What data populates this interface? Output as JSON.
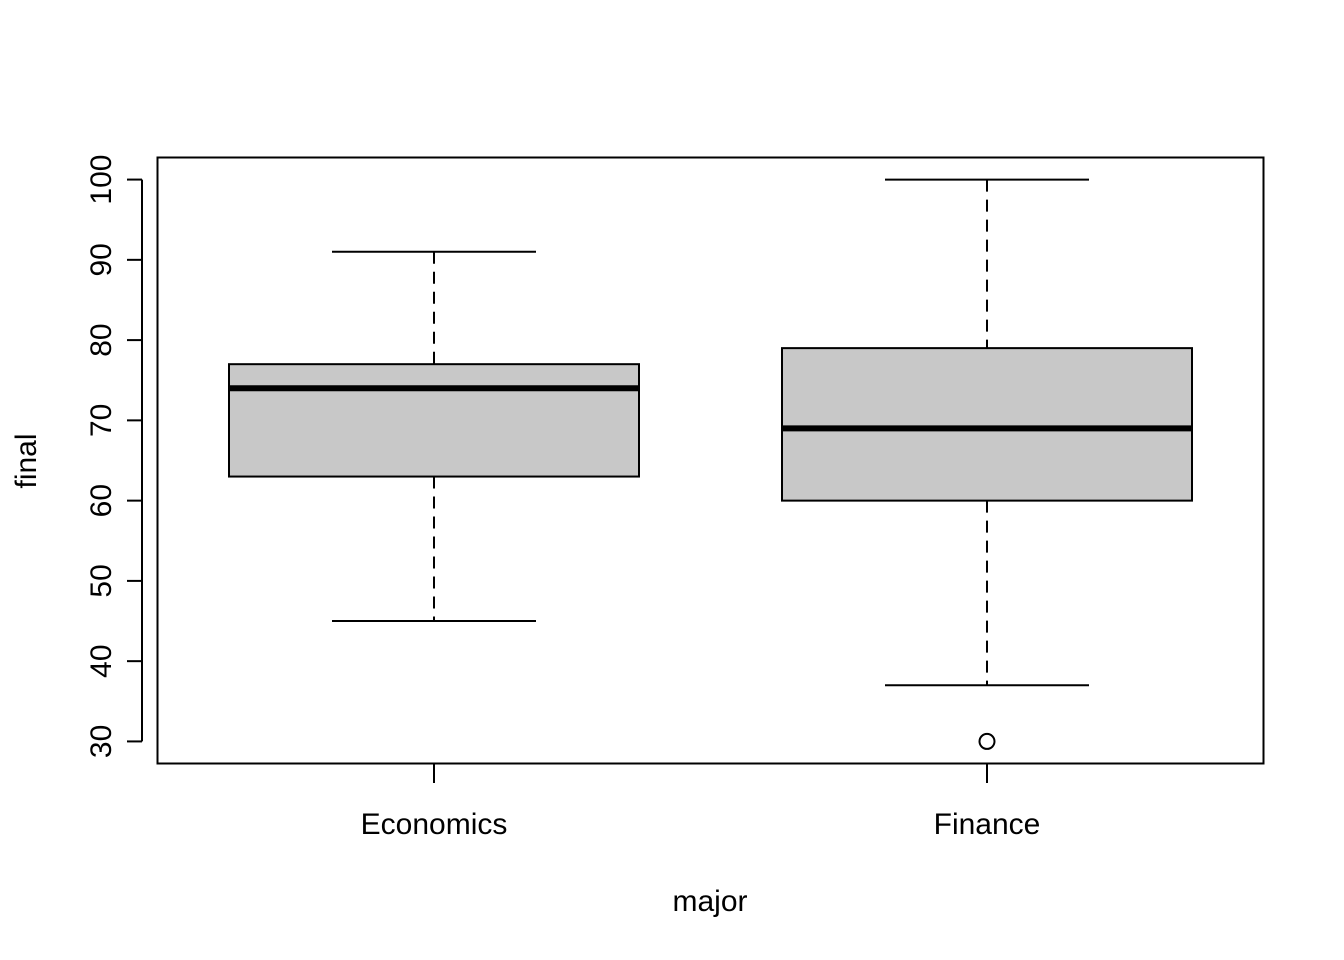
{
  "chart_data": {
    "type": "boxplot",
    "title": "",
    "xlabel": "major",
    "ylabel": "final",
    "categories": [
      "Economics",
      "Finance"
    ],
    "boxes": [
      {
        "category": "Economics",
        "whisker_low": 45,
        "q1": 63,
        "median": 74,
        "q3": 77,
        "whisker_high": 91,
        "outliers": []
      },
      {
        "category": "Finance",
        "whisker_low": 37,
        "q1": 60,
        "median": 69,
        "q3": 79,
        "whisker_high": 100,
        "outliers": [
          30
        ]
      }
    ],
    "ylim": [
      27.25,
      102.75
    ],
    "yticks": [
      30,
      40,
      50,
      60,
      70,
      80,
      90,
      100
    ],
    "ytick_labels": [
      "30",
      "40",
      "50",
      "60",
      "70",
      "80",
      "90",
      "100"
    ],
    "grid": false,
    "box_fill": "#c8c8c8",
    "line_color": "#000000"
  }
}
